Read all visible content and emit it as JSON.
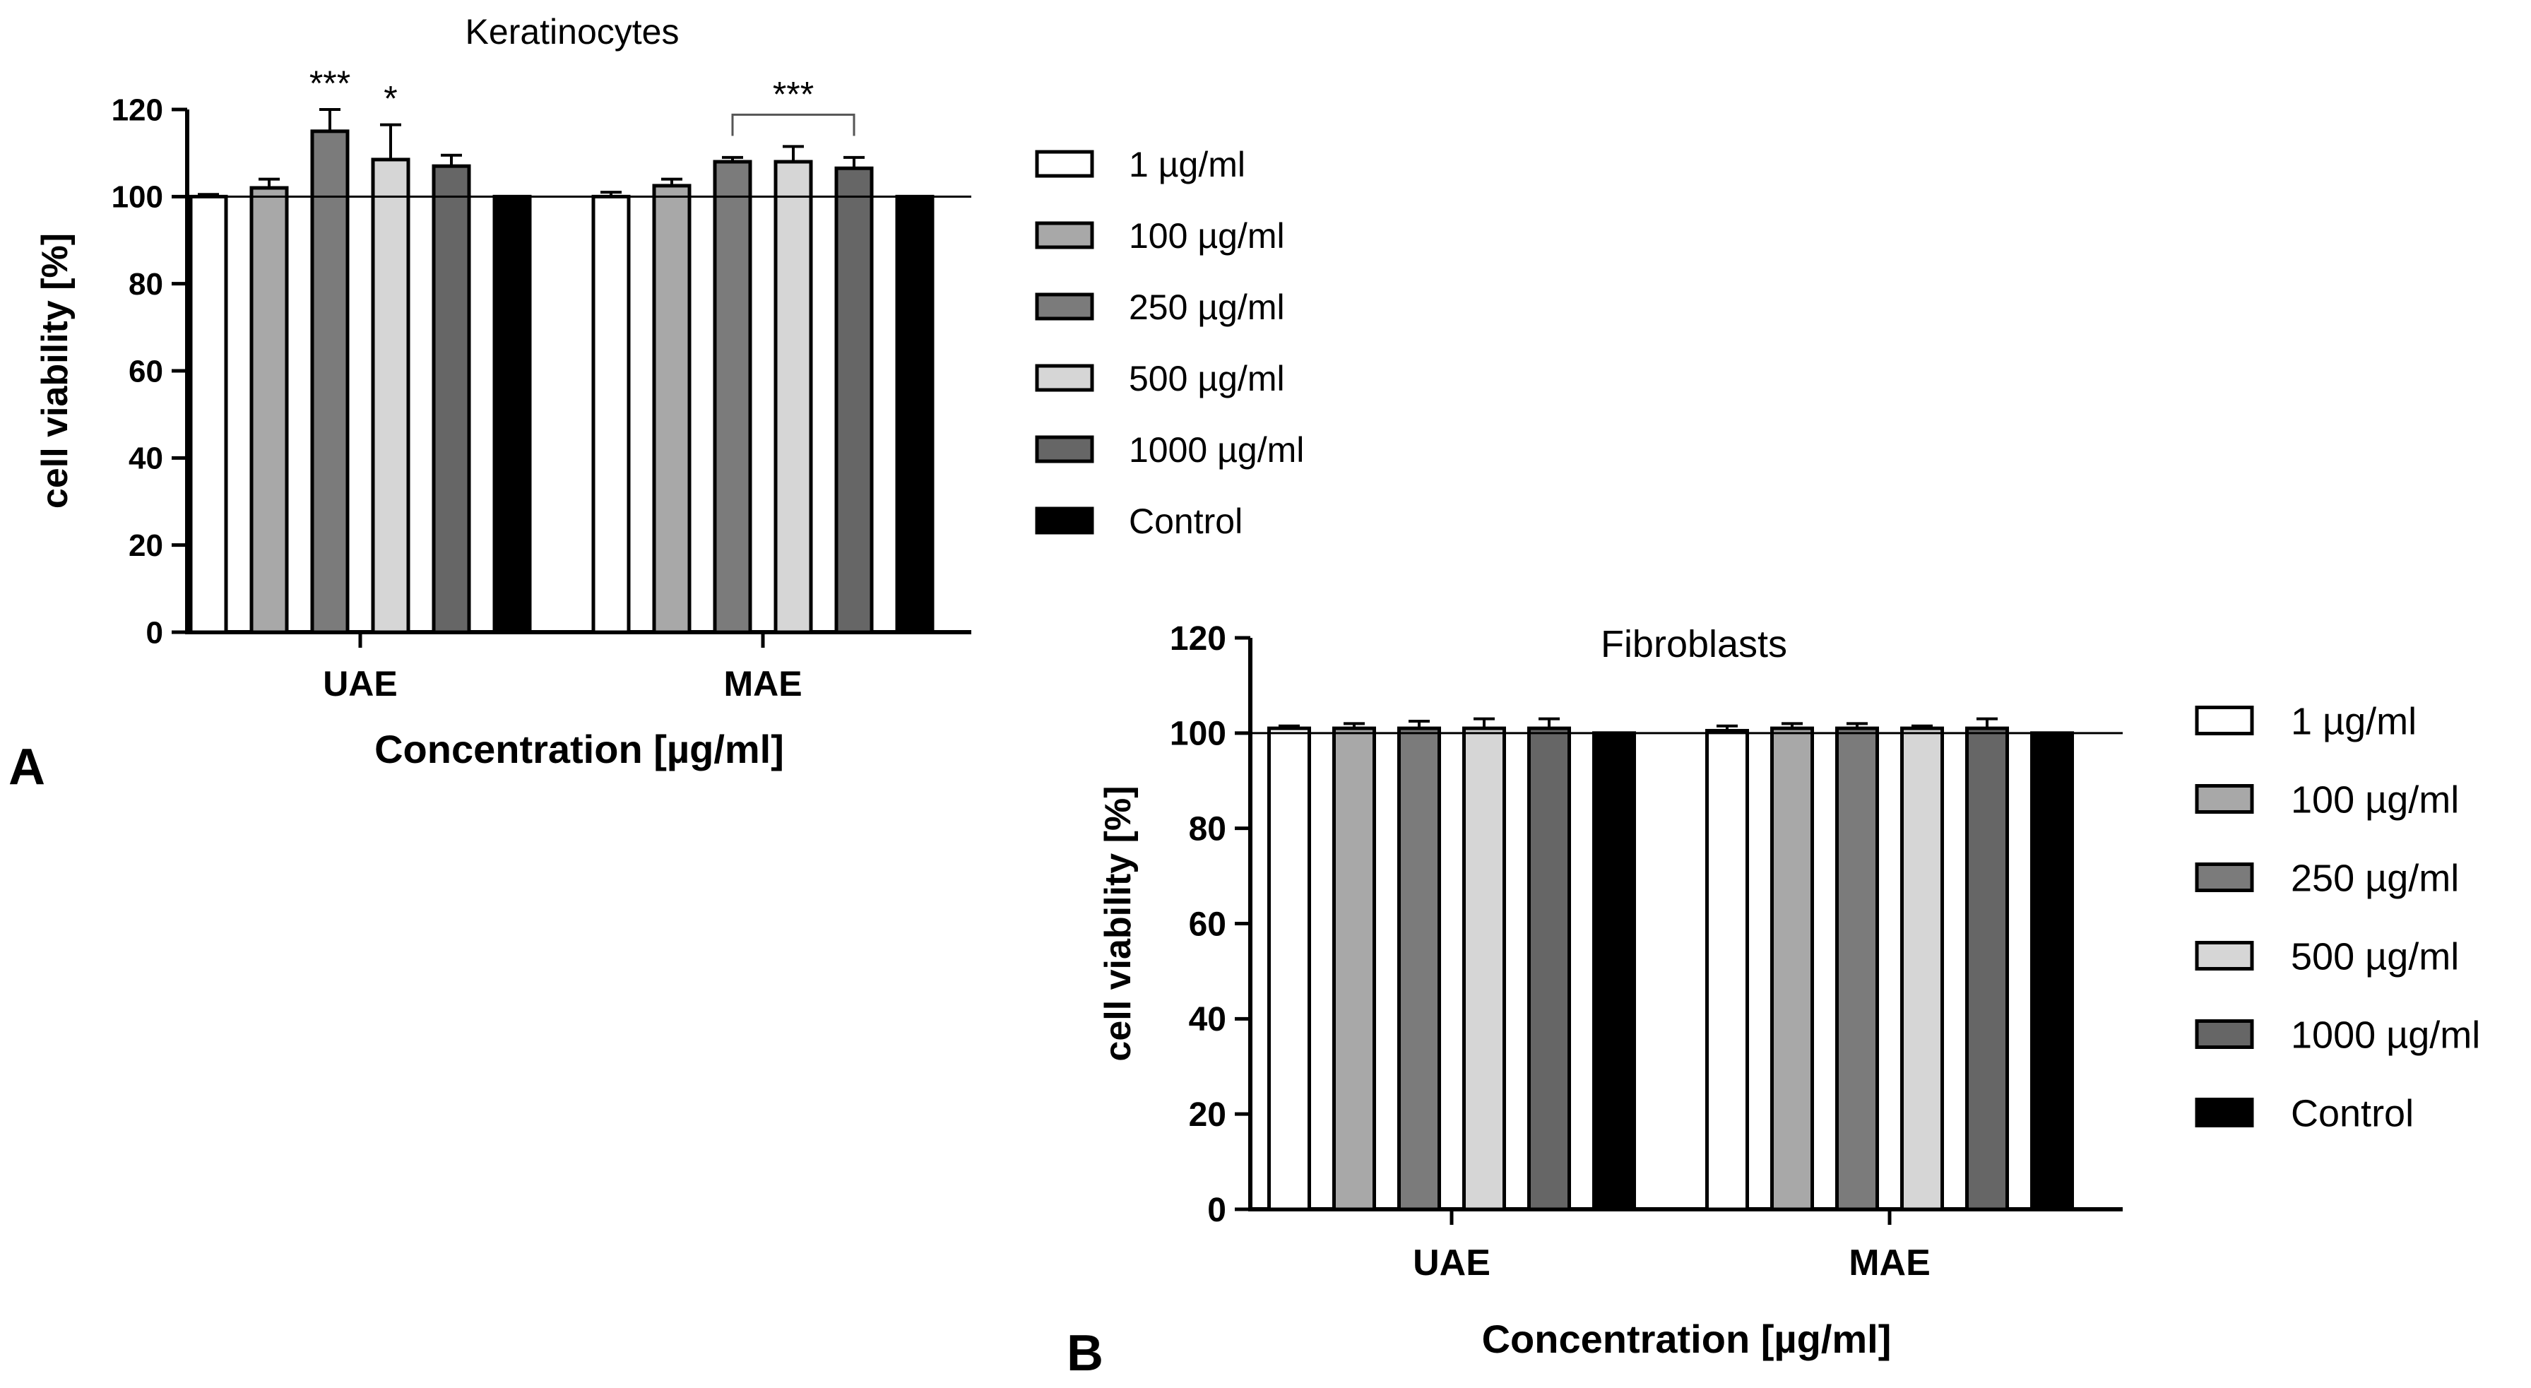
{
  "panel_labels": {
    "a": "A",
    "b": "B"
  },
  "colors": {
    "1 µg/ml": "#ffffff",
    "100 µg/ml": "#a8a8a8",
    "250 µg/ml": "#7b7b7b",
    "500 µg/ml": "#d6d6d6",
    "1000 µg/ml": "#666666",
    "Control": "#000000",
    "axis": "#000000"
  },
  "chart_data": [
    {
      "type": "bar",
      "title": "Keratinocytes",
      "xlabel": "Concentration [µg/ml]",
      "ylabel": "cell viability [%]",
      "ylim": [
        0,
        120
      ],
      "yticks": [
        "0",
        "20",
        "40",
        "60",
        "80",
        "100",
        "120"
      ],
      "reference_line": 100,
      "categories": [
        "UAE",
        "MAE"
      ],
      "legend": {
        "position": "right",
        "entries": [
          "1 µg/ml",
          "100 µg/ml",
          "250 µg/ml",
          "500 µg/ml",
          "1000 µg/ml",
          "Control"
        ]
      },
      "series": [
        {
          "name": "1 µg/ml",
          "values": [
            100,
            100
          ],
          "errors": [
            0.5,
            1
          ]
        },
        {
          "name": "100 µg/ml",
          "values": [
            102,
            102.5
          ],
          "errors": [
            2,
            1.5
          ]
        },
        {
          "name": "250 µg/ml",
          "values": [
            115,
            108
          ],
          "errors": [
            5,
            1
          ]
        },
        {
          "name": "500 µg/ml",
          "values": [
            108.5,
            108
          ],
          "errors": [
            8,
            3.5
          ]
        },
        {
          "name": "1000 µg/ml",
          "values": [
            107,
            106.5
          ],
          "errors": [
            2.5,
            2.5
          ]
        },
        {
          "name": "Control",
          "values": [
            100,
            100
          ],
          "errors": [
            0,
            0
          ]
        }
      ],
      "annotations": [
        {
          "text": "***",
          "category": "UAE",
          "series": "250 µg/ml"
        },
        {
          "text": "*",
          "category": "UAE",
          "series": "500 µg/ml"
        },
        {
          "text": "***",
          "category": "MAE",
          "bracket_from": "250 µg/ml",
          "bracket_to": "1000 µg/ml"
        }
      ]
    },
    {
      "type": "bar",
      "title": "Fibroblasts",
      "xlabel": "Concentration [µg/ml]",
      "ylabel": "cell viability [%]",
      "ylim": [
        0,
        120
      ],
      "yticks": [
        "0",
        "20",
        "40",
        "60",
        "80",
        "100",
        "120"
      ],
      "reference_line": 100,
      "categories": [
        "UAE",
        "MAE"
      ],
      "legend": {
        "position": "right",
        "entries": [
          "1 µg/ml",
          "100 µg/ml",
          "250 µg/ml",
          "500 µg/ml",
          "1000 µg/ml",
          "Control"
        ]
      },
      "series": [
        {
          "name": "1 µg/ml",
          "values": [
            101,
            100.5
          ],
          "errors": [
            0.5,
            1
          ]
        },
        {
          "name": "100 µg/ml",
          "values": [
            101,
            101
          ],
          "errors": [
            1,
            1
          ]
        },
        {
          "name": "250 µg/ml",
          "values": [
            101,
            101
          ],
          "errors": [
            1.5,
            1
          ]
        },
        {
          "name": "500 µg/ml",
          "values": [
            101,
            101
          ],
          "errors": [
            2,
            0.5
          ]
        },
        {
          "name": "1000 µg/ml",
          "values": [
            101,
            101
          ],
          "errors": [
            2,
            2
          ]
        },
        {
          "name": "Control",
          "values": [
            100,
            100
          ],
          "errors": [
            0,
            0
          ]
        }
      ],
      "annotations": []
    }
  ]
}
